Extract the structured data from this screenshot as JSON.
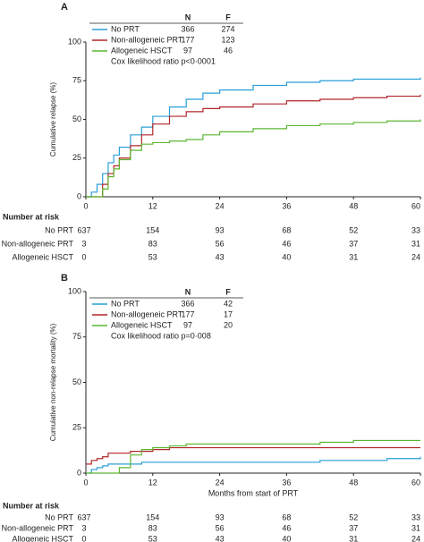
{
  "chart_data": [
    {
      "type": "line",
      "step": true,
      "panel": "A",
      "y_label": "Cumulative relapse (%)",
      "x": [
        0,
        1,
        2,
        3,
        4,
        5,
        6,
        8,
        10,
        12,
        15,
        18,
        21,
        24,
        30,
        36,
        42,
        48,
        54,
        60
      ],
      "xlim": [
        0,
        60
      ],
      "xticks": [
        0,
        12,
        24,
        36,
        48,
        60
      ],
      "ylim": [
        0,
        100
      ],
      "yticks": [
        0,
        25,
        50,
        75,
        100
      ],
      "legend_headers": [
        "N",
        "F"
      ],
      "series": [
        {
          "name": "No PRT",
          "color": "#2a9fd6",
          "n": 366,
          "f": 274,
          "values": [
            0,
            3,
            8,
            15,
            22,
            27,
            32,
            40,
            45,
            52,
            58,
            63,
            67,
            69,
            72,
            74,
            75,
            76,
            76,
            77
          ]
        },
        {
          "name": "Non-allogeneic PRT",
          "color": "#b3262a",
          "n": 177,
          "f": 123,
          "values": [
            0,
            0,
            0,
            8,
            15,
            20,
            25,
            33,
            40,
            47,
            52,
            55,
            57,
            58,
            60,
            62,
            63,
            64,
            65,
            66
          ]
        },
        {
          "name": "Allogeneic HSCT",
          "color": "#5cb531",
          "n": 97,
          "f": 46,
          "values": [
            0,
            0,
            0,
            5,
            13,
            18,
            24,
            30,
            34,
            35,
            36,
            37,
            40,
            42,
            44,
            46,
            47,
            48,
            49,
            50
          ]
        }
      ],
      "annotation": "Cox likelihood ratio p<0·0001",
      "risk_table": {
        "title": "Number at risk",
        "rows": [
          {
            "name": "No PRT",
            "values": [
              637,
              154,
              93,
              68,
              52,
              33
            ]
          },
          {
            "name": "Non-allogeneic PRT",
            "values": [
              3,
              83,
              56,
              46,
              37,
              31
            ]
          },
          {
            "name": "Allogeneic HSCT",
            "values": [
              0,
              53,
              43,
              40,
              31,
              24
            ]
          }
        ]
      }
    },
    {
      "type": "line",
      "step": true,
      "panel": "B",
      "y_label": "Cumulative non-relapse mortality (%)",
      "x_label": "Months from start of PRT",
      "x": [
        0,
        1,
        2,
        3,
        4,
        5,
        6,
        8,
        10,
        12,
        15,
        18,
        21,
        24,
        30,
        36,
        42,
        48,
        54,
        60
      ],
      "xlim": [
        0,
        60
      ],
      "xticks": [
        0,
        12,
        24,
        36,
        48,
        60
      ],
      "ylim": [
        0,
        100
      ],
      "yticks": [
        0,
        25,
        50,
        75,
        100
      ],
      "legend_headers": [
        "N",
        "F"
      ],
      "series": [
        {
          "name": "No PRT",
          "color": "#2a9fd6",
          "n": 366,
          "f": 42,
          "values": [
            0,
            2,
            3,
            4,
            5,
            5,
            5,
            5,
            6,
            6,
            6,
            6,
            6,
            6,
            6,
            6,
            7,
            7,
            8,
            9
          ]
        },
        {
          "name": "Non-allogeneic PRT",
          "color": "#b3262a",
          "n": 177,
          "f": 17,
          "values": [
            5,
            7,
            8,
            9,
            11,
            11,
            11,
            12,
            12,
            13,
            14,
            14,
            14,
            14,
            14,
            14,
            14,
            14,
            14,
            14
          ]
        },
        {
          "name": "Allogeneic HSCT",
          "color": "#5cb531",
          "n": 97,
          "f": 20,
          "values": [
            0,
            0,
            0,
            0,
            0,
            0,
            3,
            10,
            13,
            14,
            15,
            16,
            16,
            16,
            16,
            16,
            17,
            18,
            18,
            18
          ]
        }
      ],
      "annotation": "Cox likelihood ratio p=0·008",
      "risk_table": {
        "title": "Number at risk",
        "rows": [
          {
            "name": "No PRT",
            "values": [
              637,
              154,
              93,
              68,
              52,
              33
            ]
          },
          {
            "name": "Non-allogeneic PRT",
            "values": [
              3,
              83,
              56,
              46,
              37,
              31
            ]
          },
          {
            "name": "Allogeneic HSCT",
            "values": [
              0,
              53,
              43,
              40,
              31,
              24
            ]
          }
        ]
      }
    }
  ]
}
